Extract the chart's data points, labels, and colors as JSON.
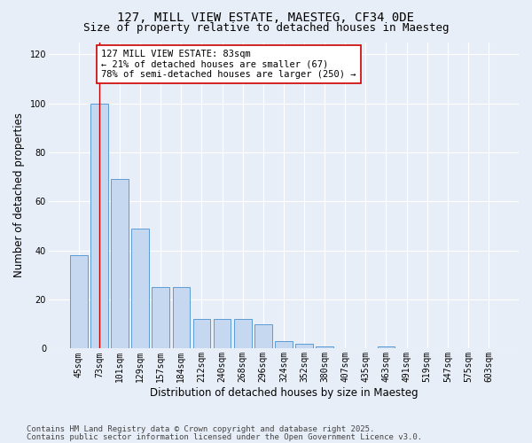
{
  "title": "127, MILL VIEW ESTATE, MAESTEG, CF34 0DE",
  "subtitle": "Size of property relative to detached houses in Maesteg",
  "xlabel": "Distribution of detached houses by size in Maesteg",
  "ylabel": "Number of detached properties",
  "categories": [
    "45sqm",
    "73sqm",
    "101sqm",
    "129sqm",
    "157sqm",
    "184sqm",
    "212sqm",
    "240sqm",
    "268sqm",
    "296sqm",
    "324sqm",
    "352sqm",
    "380sqm",
    "407sqm",
    "435sqm",
    "463sqm",
    "491sqm",
    "519sqm",
    "547sqm",
    "575sqm",
    "603sqm"
  ],
  "values": [
    38,
    100,
    69,
    49,
    25,
    25,
    12,
    12,
    12,
    10,
    3,
    2,
    1,
    0,
    0,
    1,
    0,
    0,
    0,
    0,
    0
  ],
  "bar_color": "#c5d8f0",
  "bar_edge_color": "#5b9bd5",
  "vline_x": 1,
  "vline_color": "#cc0000",
  "annotation_text": "127 MILL VIEW ESTATE: 83sqm\n← 21% of detached houses are smaller (67)\n78% of semi-detached houses are larger (250) →",
  "annotation_box_color": "#ffffff",
  "annotation_box_edge": "#cc0000",
  "ylim": [
    0,
    125
  ],
  "yticks": [
    0,
    20,
    40,
    60,
    80,
    100,
    120
  ],
  "footer1": "Contains HM Land Registry data © Crown copyright and database right 2025.",
  "footer2": "Contains public sector information licensed under the Open Government Licence v3.0.",
  "bg_color": "#e8eef7",
  "plot_bg_color": "#e8eef7",
  "title_fontsize": 10,
  "subtitle_fontsize": 9,
  "tick_fontsize": 7,
  "label_fontsize": 8.5,
  "footer_fontsize": 6.5
}
